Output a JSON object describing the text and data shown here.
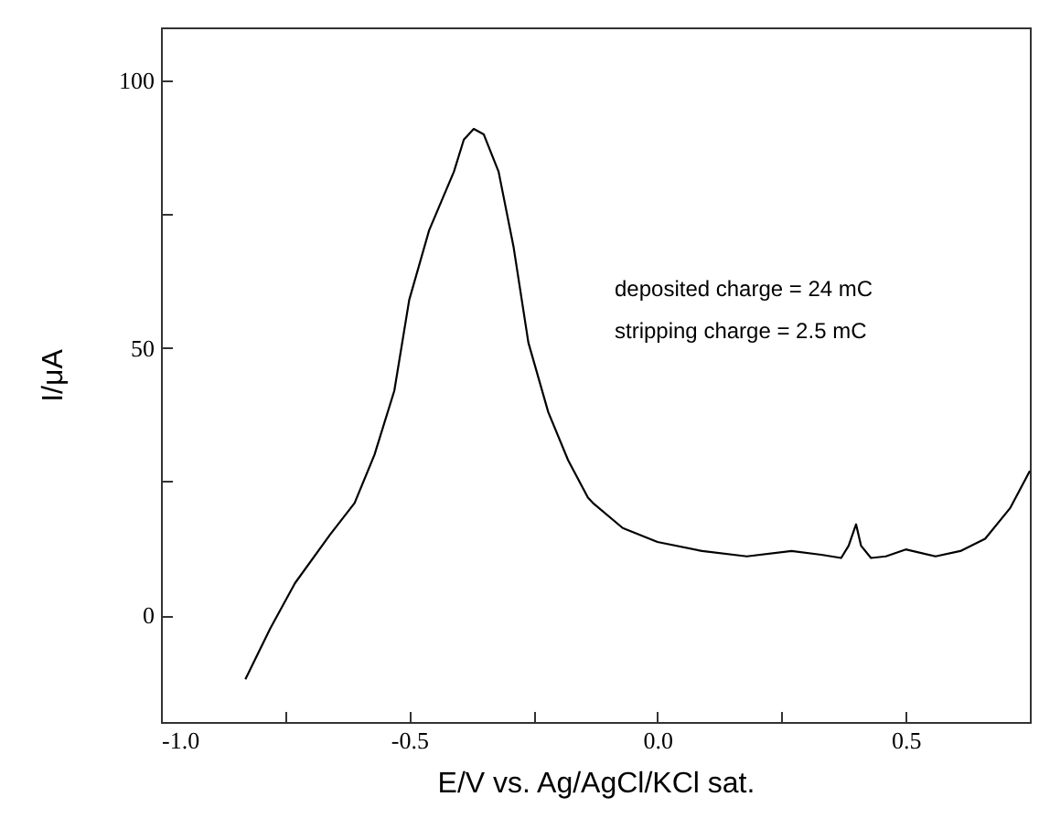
{
  "chart_data": {
    "type": "line",
    "xlabel": "E/V vs. Ag/AgCl/KCl sat.",
    "ylabel": "I/μA",
    "annotations": [
      "deposited charge = 24 mC",
      "stripping charge   = 2.5 mC"
    ],
    "xlim": [
      -1,
      0.75
    ],
    "ylim": [
      -20,
      110
    ],
    "xticks": [
      {
        "value": -1,
        "label": "-1.0"
      },
      {
        "value": -0.75,
        "label": null
      },
      {
        "value": -0.5,
        "label": "-0.5"
      },
      {
        "value": -0.25,
        "label": null
      },
      {
        "value": 0,
        "label": "0.0"
      },
      {
        "value": 0.25,
        "label": null
      },
      {
        "value": 0.5,
        "label": "0.5"
      },
      {
        "value": 0.75,
        "label": null
      }
    ],
    "yticks": [
      0,
      {
        "value": 25,
        "label": null
      },
      50,
      {
        "value": 75,
        "label": null
      },
      100
    ],
    "grid": false,
    "line_style": "solid",
    "marker": "none",
    "series": [
      {
        "color": "#000000",
        "x": [
          -0.83,
          -0.78,
          -0.73,
          -0.66,
          -0.61,
          -0.57,
          -0.53,
          -0.5,
          -0.46,
          -0.41,
          -0.39,
          -0.37,
          -0.35,
          -0.32,
          -0.29,
          -0.26,
          -0.22,
          -0.18,
          -0.14,
          -0.13,
          -0.07,
          0,
          0.09,
          0.18,
          0.27,
          0.33,
          0.37,
          0.385,
          0.4,
          0.41,
          0.43,
          0.46,
          0.5,
          0.56,
          0.61,
          0.66,
          0.71,
          0.75
        ],
        "values": [
          -12,
          -2.5,
          6,
          15,
          21,
          30,
          42,
          59,
          72,
          83,
          89,
          91,
          90,
          83,
          69,
          51,
          38,
          29,
          22,
          21,
          16.3,
          13.7,
          12,
          11,
          12,
          11.3,
          10.7,
          13,
          17,
          13,
          10.7,
          11,
          12.3,
          11,
          12,
          14.3,
          20,
          27
        ]
      }
    ]
  }
}
